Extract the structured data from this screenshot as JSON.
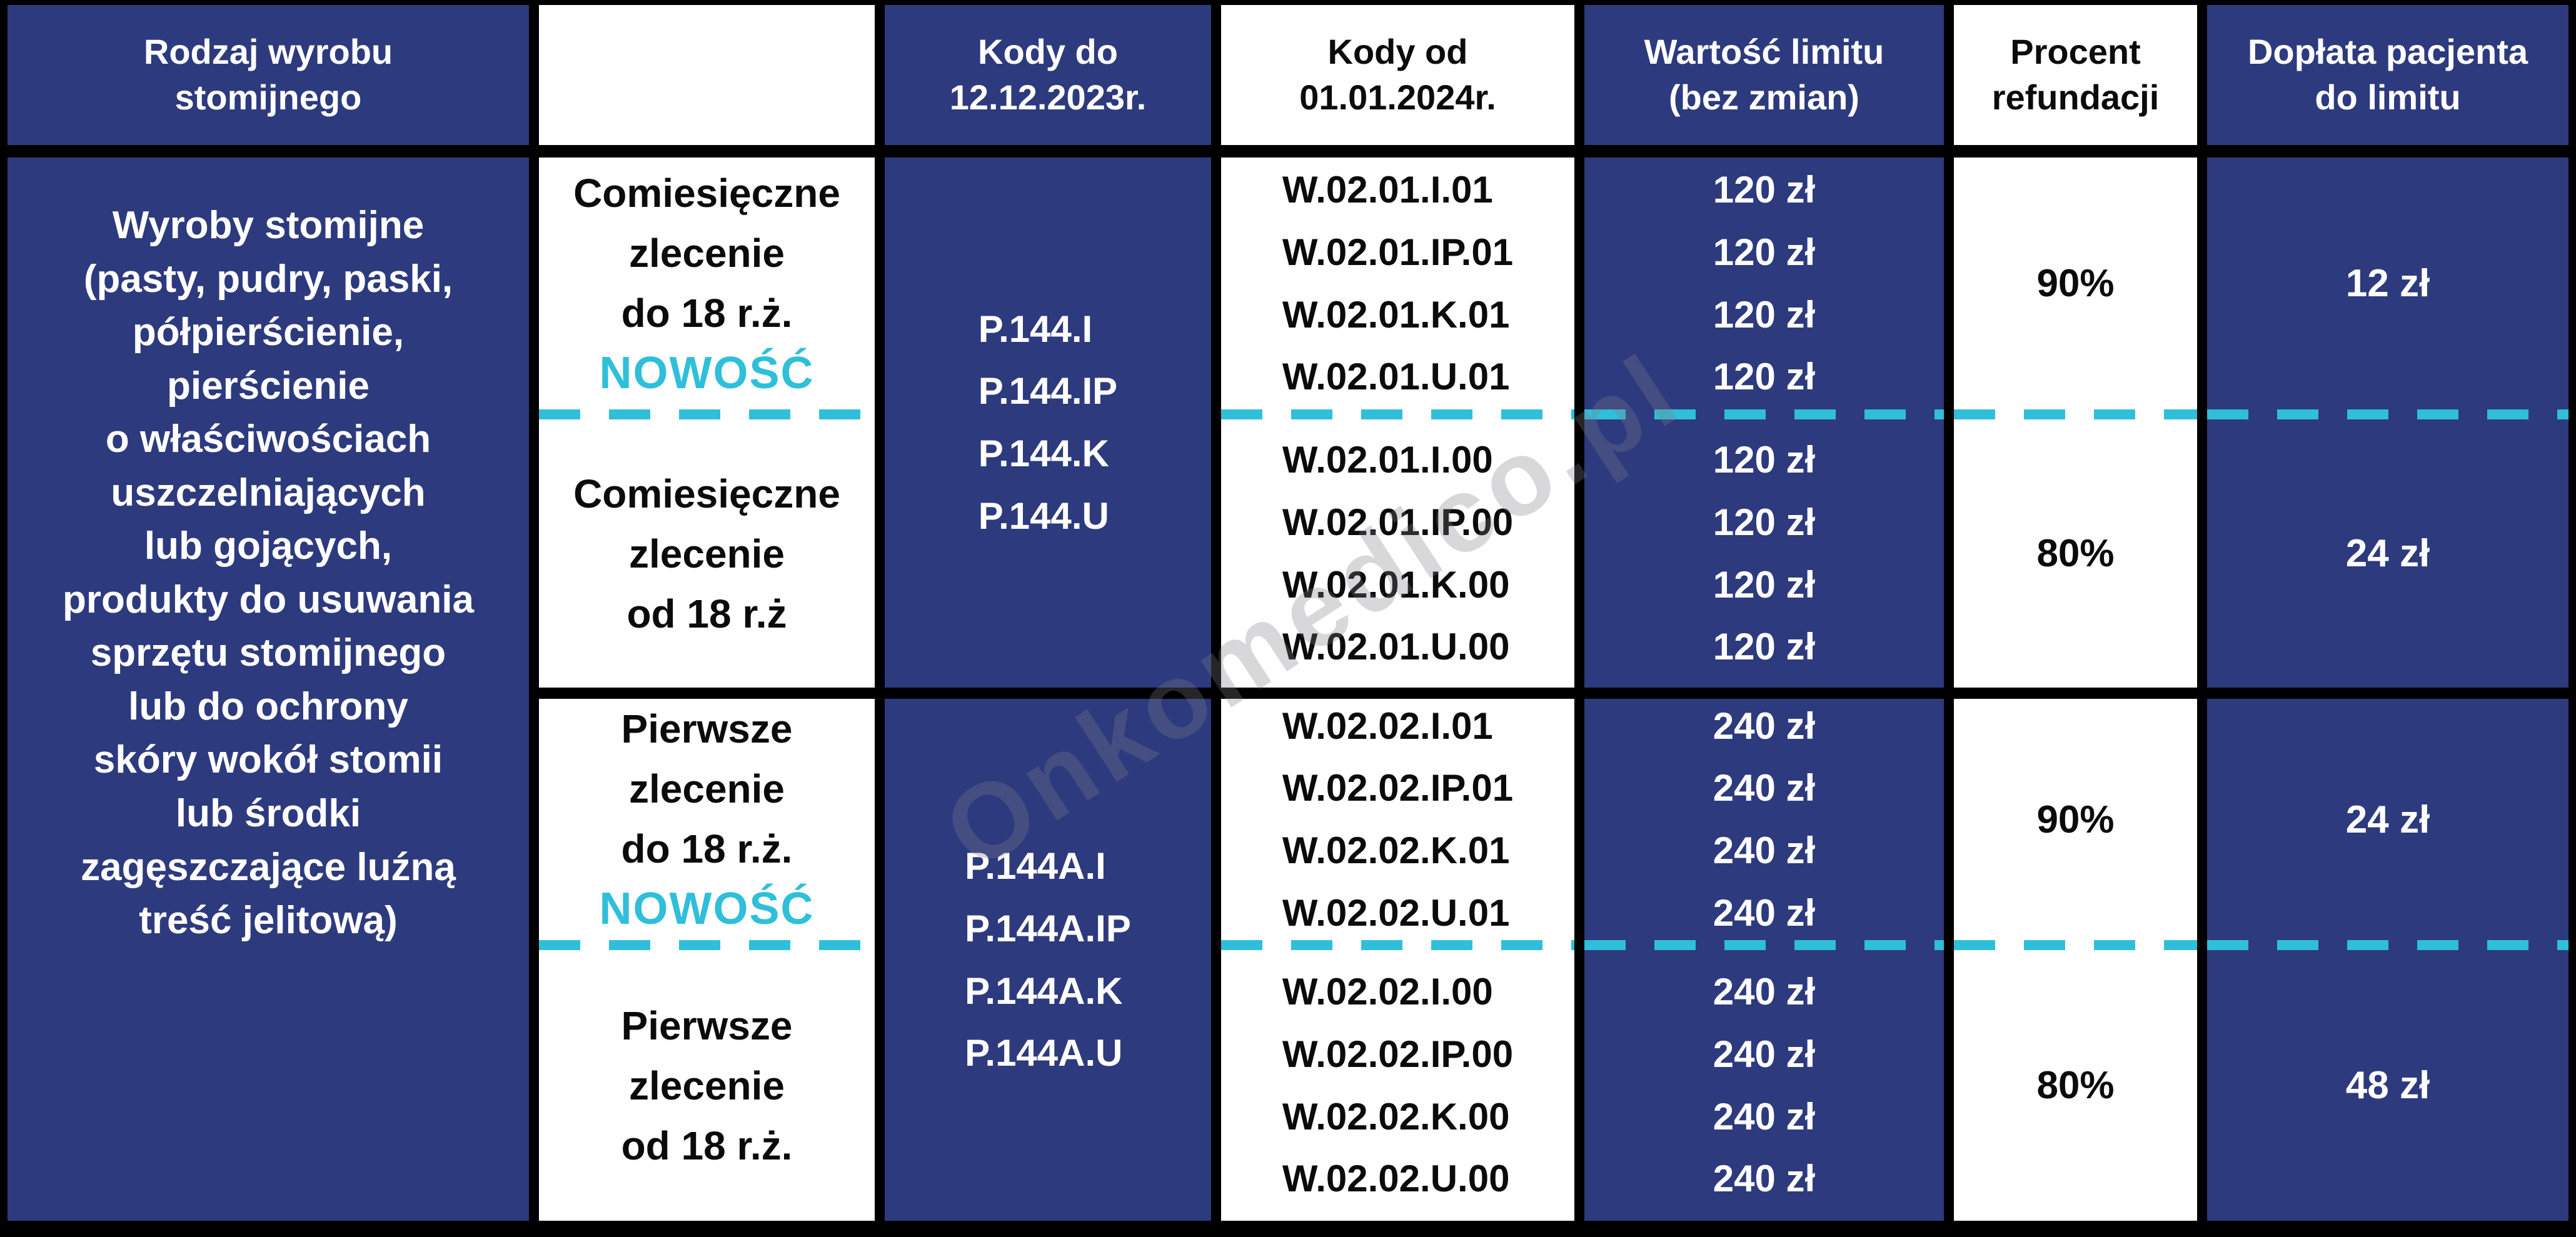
{
  "watermark": "Onkomedico.pl",
  "colors": {
    "navy": "#2d3a7e",
    "cyan": "#2fbfda",
    "border_black": "#000000",
    "text_black": "#0b0b0b",
    "text_white": "#ffffff"
  },
  "table": {
    "headers": {
      "c1": "Rodzaj wyrobu\nstomijnego",
      "c2": "",
      "c3": "Kody do\n12.12.2023r.",
      "c4": "Kody od\n01.01.2024r.",
      "c5": "Wartość limitu\n(bez zmian)",
      "c6": "Procent\nrefundacji",
      "c7": "Dopłata pacjenta\ndo limitu"
    },
    "product_type": "Wyroby stomijne\n(pasty, pudry, paski,\npółpierścienie,\npierścienie\no właściwościach\nuszczelniających\nlub gojących,\nprodukty do usuwania\nsprzętu stomijnego\nlub do ochrony\nskóry wokół stomii\nlub środki\nzagęszczające luźną\ntreść jelitową)",
    "groups": [
      {
        "codes_old": "P.144.I\nP.144.IP\nP.144.K\nP.144.U",
        "rows": [
          {
            "order_type": "Comiesięczne\nzlecenie\ndo 18 r.ż.",
            "badge": "NOWOŚĆ",
            "codes_new": "W.02.01.I.01\nW.02.01.IP.01\nW.02.01.K.01\nW.02.01.U.01",
            "limit": "120 zł\n120 zł\n120 zł\n120 zł",
            "refund_percent": "90%",
            "patient_copay": "12 zł"
          },
          {
            "order_type": "Comiesięczne\nzlecenie\nod 18 r.ż",
            "badge": "",
            "codes_new": "W.02.01.I.00\nW.02.01.IP.00\nW.02.01.K.00\nW.02.01.U.00",
            "limit": "120 zł\n120 zł\n120 zł\n120 zł",
            "refund_percent": "80%",
            "patient_copay": "24 zł"
          }
        ]
      },
      {
        "codes_old": "P.144A.I\nP.144A.IP\nP.144A.K\nP.144A.U",
        "rows": [
          {
            "order_type": "Pierwsze\nzlecenie\ndo 18 r.ż.",
            "badge": "NOWOŚĆ",
            "codes_new": "W.02.02.I.01\nW.02.02.IP.01\nW.02.02.K.01\nW.02.02.U.01",
            "limit": "240 zł\n240 zł\n240 zł\n240 zł",
            "refund_percent": "90%",
            "patient_copay": "24 zł"
          },
          {
            "order_type": "Pierwsze\nzlecenie\nod 18 r.ż.",
            "badge": "",
            "codes_new": "W.02.02.I.00\nW.02.02.IP.00\nW.02.02.K.00\nW.02.02.U.00",
            "limit": "240 zł\n240 zł\n240 zł\n240 zł",
            "refund_percent": "80%",
            "patient_copay": "48 zł"
          }
        ]
      }
    ]
  }
}
